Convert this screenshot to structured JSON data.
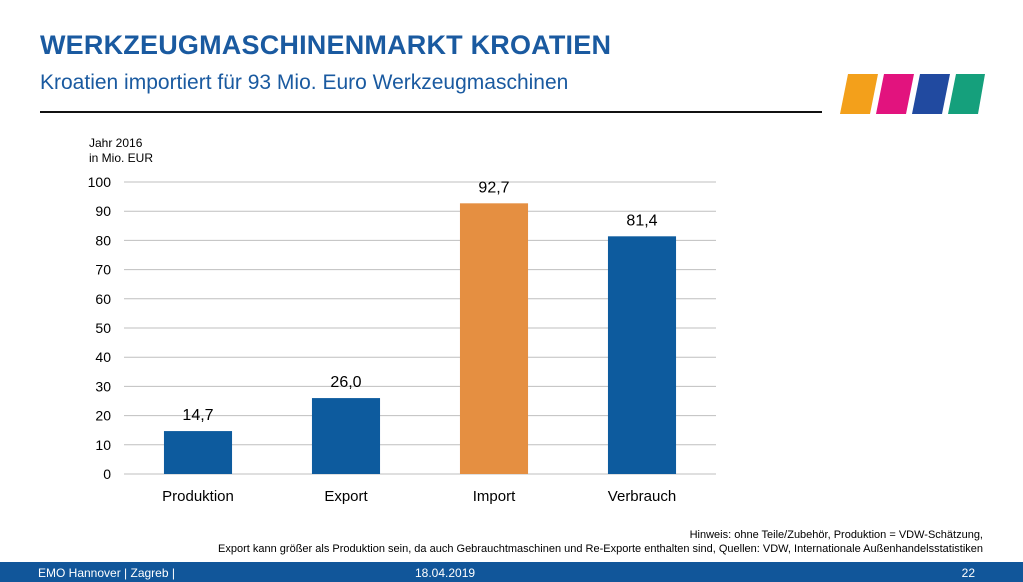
{
  "header": {
    "title": "WERKZEUGMASCHINENMARKT KROATIEN",
    "subtitle": "Kroatien importiert für 93 Mio. Euro Werkzeugmaschinen"
  },
  "logo": {
    "colors": [
      "#f3a01b",
      "#e2137e",
      "#214aa0",
      "#15a07c"
    ]
  },
  "chart_data": {
    "type": "bar",
    "unit_label_line1": "Jahr 2016",
    "unit_label_line2": "in Mio. EUR",
    "categories": [
      "Produktion",
      "Export",
      "Import",
      "Verbrauch"
    ],
    "values": [
      14.7,
      26.0,
      92.7,
      81.4
    ],
    "value_labels": [
      "14,7",
      "26,0",
      "92,7",
      "81,4"
    ],
    "bar_colors": [
      "#0d5b9e",
      "#0d5b9e",
      "#e58f41",
      "#0d5b9e"
    ],
    "ylim": [
      0,
      100
    ],
    "yticks": [
      "0",
      "10",
      "20",
      "30",
      "40",
      "50",
      "60",
      "70",
      "80",
      "90",
      "100"
    ],
    "grid": true,
    "legend": "none"
  },
  "notes": {
    "line1": "Hinweis: ohne Teile/Zubehör, Produktion = VDW-Schätzung,",
    "line2": "Export kann größer als Produktion sein, da auch Gebrauchtmaschinen und Re-Exporte enthalten sind, Quellen: VDW, Internationale Außenhandelsstatistiken"
  },
  "footer": {
    "left": "EMO Hannover | Zagreb |",
    "date": "18.04.2019",
    "page": "22"
  }
}
